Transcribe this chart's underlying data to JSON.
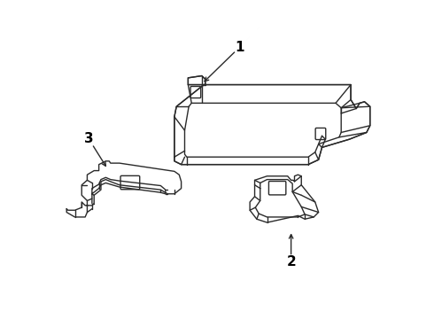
{
  "background_color": "#ffffff",
  "line_color": "#2a2a2a",
  "label_color": "#000000",
  "lw": 1.0
}
